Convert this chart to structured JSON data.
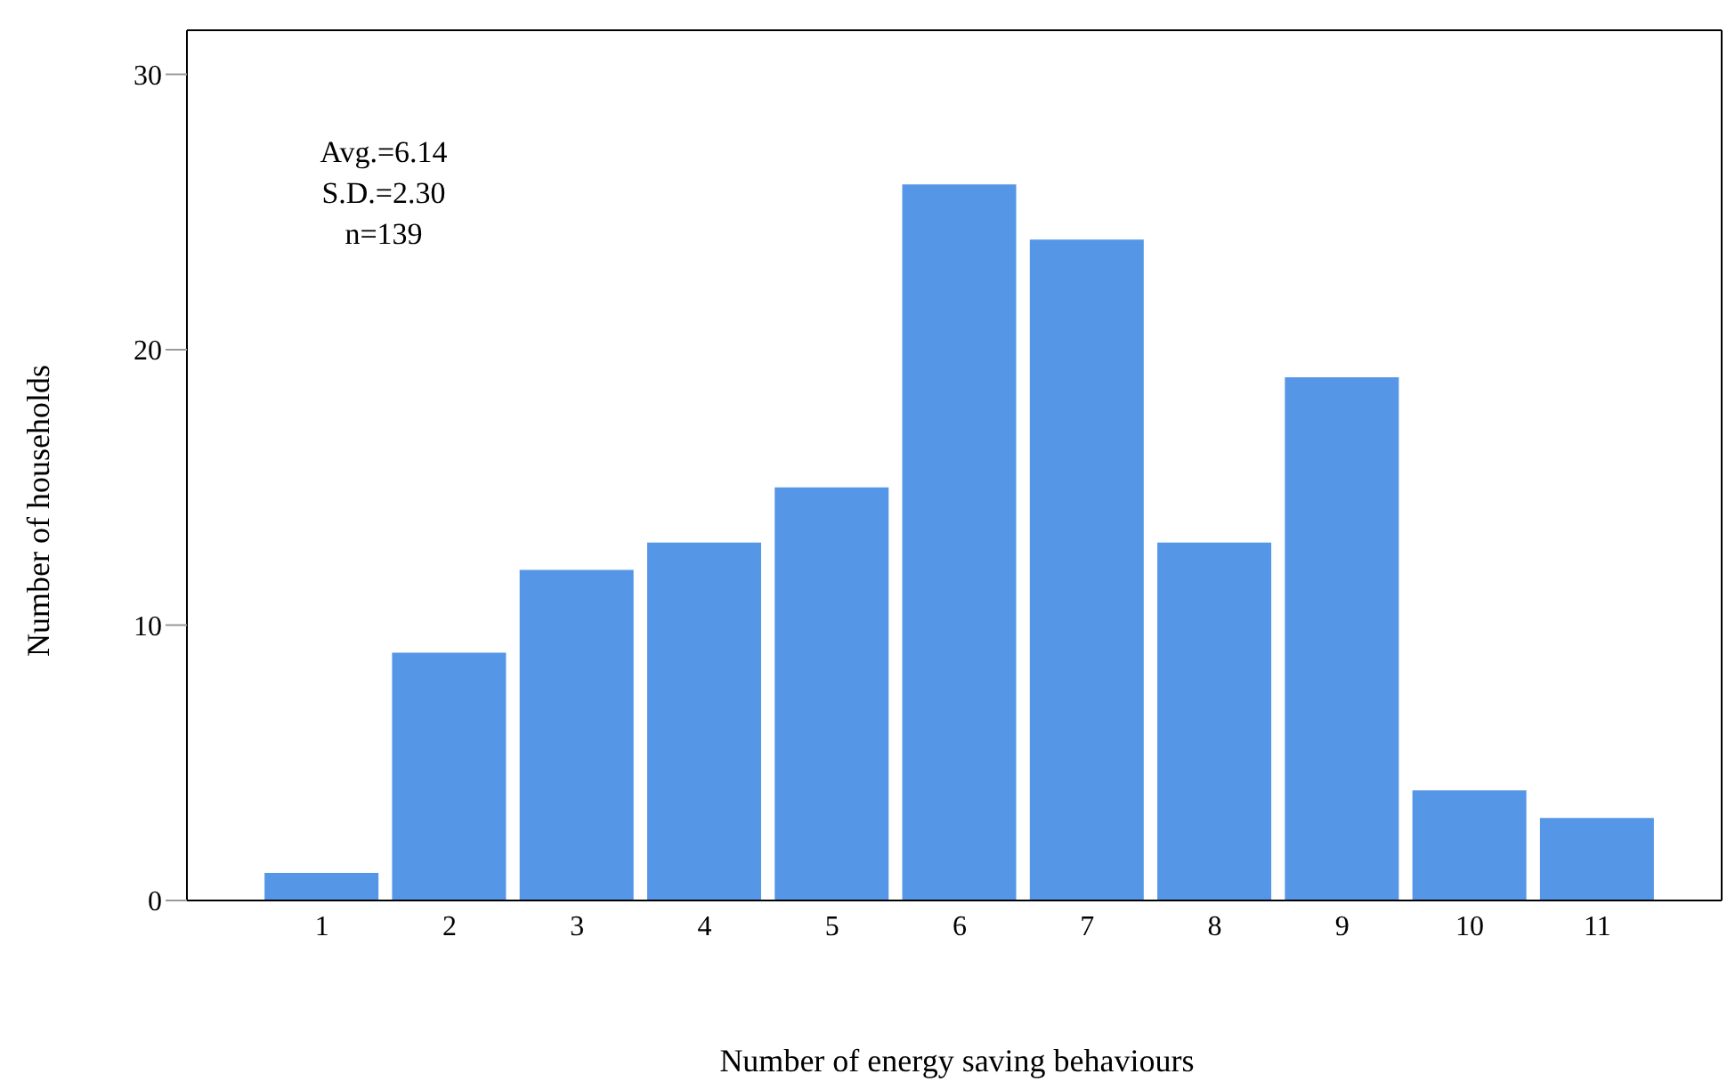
{
  "chart_data": {
    "type": "bar",
    "xlabel": "Number of energy saving behaviours",
    "ylabel": "Number of households",
    "categories": [
      "1",
      "2",
      "3",
      "4",
      "5",
      "6",
      "7",
      "8",
      "9",
      "10",
      "11"
    ],
    "values": [
      1,
      9,
      12,
      13,
      15,
      26,
      24,
      13,
      19,
      4,
      3
    ],
    "color": "#5596e6",
    "ylim": [
      0,
      31.6
    ],
    "yticks": [
      0,
      10,
      20,
      30
    ],
    "grid": false,
    "legend": false,
    "annotations": [
      "Avg.=6.14",
      "S.D.=2.30",
      "n=139"
    ]
  }
}
